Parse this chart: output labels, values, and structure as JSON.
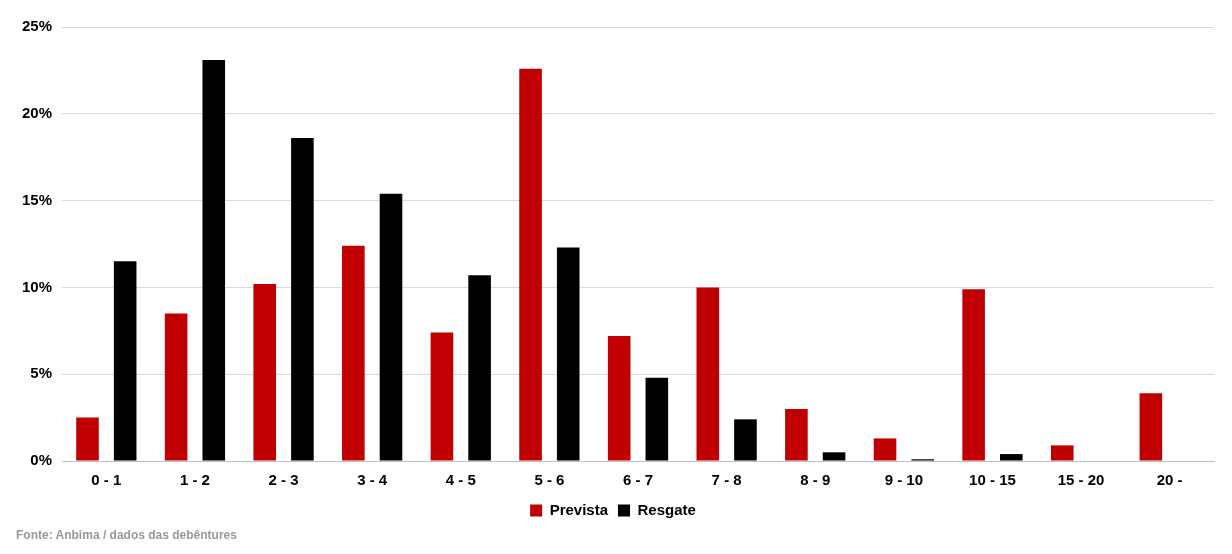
{
  "chart_data": {
    "type": "bar",
    "categories": [
      "0 - 1",
      "1 - 2",
      "2 - 3",
      "3 - 4",
      "4 - 5",
      "5 - 6",
      "6 - 7",
      "7 - 8",
      "8 - 9",
      "9 - 10",
      "10 - 15",
      "15 - 20",
      "20 -"
    ],
    "series": [
      {
        "name": "Prevista",
        "color": "#c00000",
        "values": [
          2.5,
          8.5,
          10.2,
          12.4,
          7.4,
          22.6,
          7.2,
          10.0,
          3.0,
          1.3,
          9.9,
          0.9,
          3.9
        ]
      },
      {
        "name": "Resgate",
        "color": "#000000",
        "values": [
          11.5,
          23.1,
          18.6,
          15.4,
          10.7,
          12.3,
          4.8,
          2.4,
          0.5,
          0.1,
          0.4,
          0,
          0
        ]
      }
    ],
    "ylim": [
      0,
      25
    ],
    "yticks": [
      {
        "value": 0,
        "label": "0%"
      },
      {
        "value": 5,
        "label": "5%"
      },
      {
        "value": 10,
        "label": "10%"
      },
      {
        "value": 15,
        "label": "15%"
      },
      {
        "value": 20,
        "label": "20%"
      },
      {
        "value": 25,
        "label": "25%"
      }
    ],
    "grid": "y",
    "legend": "bottom",
    "annotations": [
      "Fonte: Anbima / dados das debêntures"
    ]
  }
}
